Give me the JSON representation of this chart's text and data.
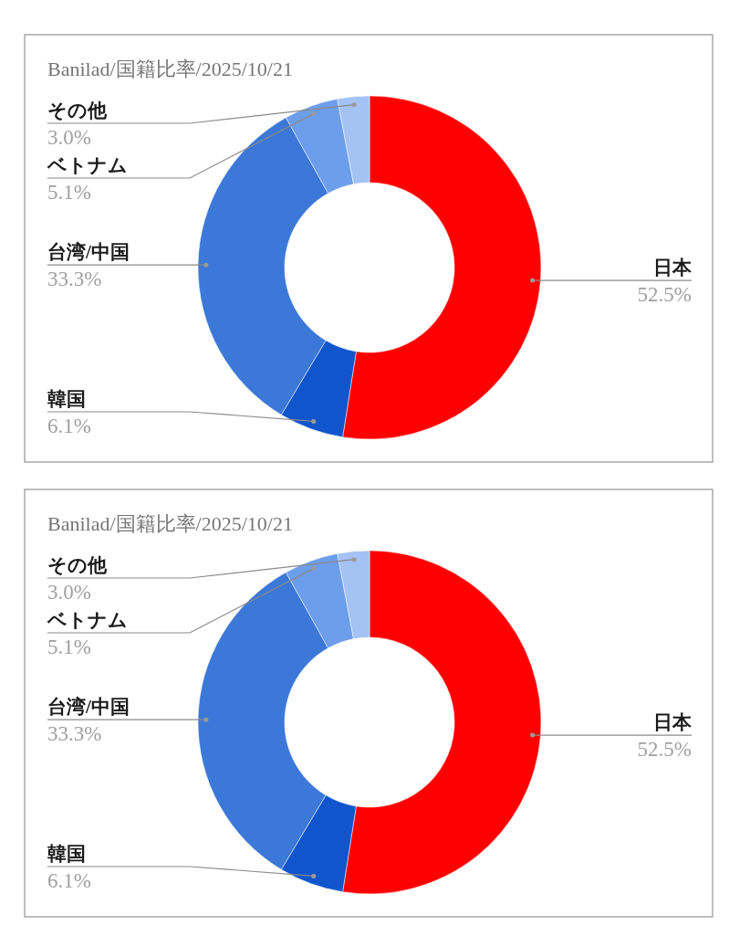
{
  "chart_data": [
    {
      "type": "donut",
      "title": "Banilad/国籍比率/2025/10/21",
      "categories": [
        "日本",
        "韓国",
        "台湾/中国",
        "ベトナム",
        "その他"
      ],
      "values": [
        52.5,
        6.1,
        33.3,
        5.1,
        3.0
      ],
      "colors": [
        "#ff0000",
        "#1155cc",
        "#3c78d8",
        "#6d9eeb",
        "#a4c2f4"
      ],
      "value_labels": [
        "52.5%",
        "6.1%",
        "33.3%",
        "5.1%",
        "3.0%"
      ]
    },
    {
      "type": "donut",
      "title": "Banilad/国籍比率/2025/10/21",
      "categories": [
        "日本",
        "韓国",
        "台湾/中国",
        "ベトナム",
        "その他"
      ],
      "values": [
        52.5,
        6.1,
        33.3,
        5.1,
        3.0
      ],
      "colors": [
        "#ff0000",
        "#1155cc",
        "#3c78d8",
        "#6d9eeb",
        "#a4c2f4"
      ],
      "value_labels": [
        "52.5%",
        "6.1%",
        "33.3%",
        "5.1%",
        "3.0%"
      ]
    }
  ]
}
